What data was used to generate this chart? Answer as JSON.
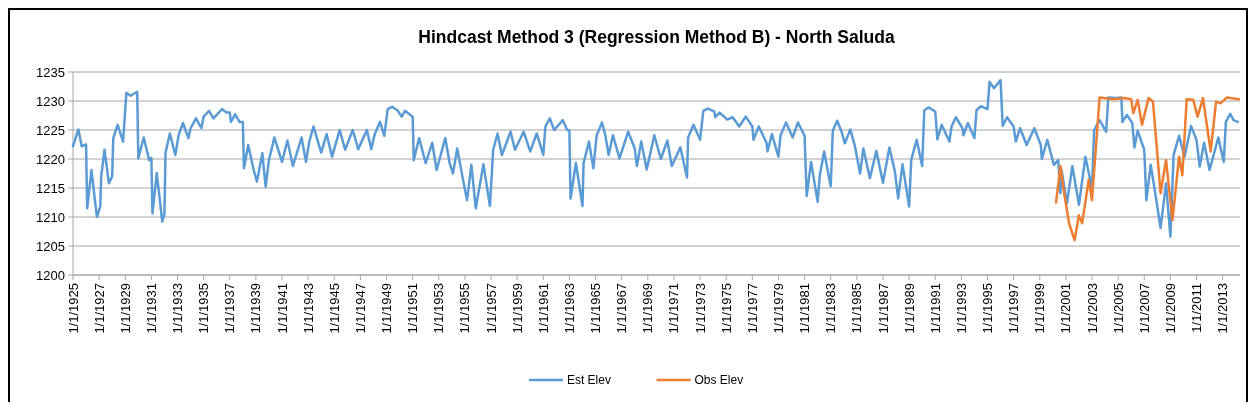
{
  "chart_data": {
    "type": "line",
    "title": "Hindcast Method 3 (Regression Method B) - North Saluda",
    "grid": "y",
    "legend": "bottom",
    "line_style": "solid",
    "xlim": [
      "1925-01-01",
      "2014-05-01"
    ],
    "ylim": [
      1200,
      1235
    ],
    "yticks": [
      1200,
      1205,
      1210,
      1215,
      1220,
      1225,
      1230,
      1235
    ],
    "xticks": [
      {
        "value": "1925-01-01",
        "label": "1/1/1925"
      },
      {
        "value": "1927-01-01",
        "label": "1/1/1927"
      },
      {
        "value": "1929-01-01",
        "label": "1/1/1929"
      },
      {
        "value": "1931-01-01",
        "label": "1/1/1931"
      },
      {
        "value": "1933-01-01",
        "label": "1/1/1933"
      },
      {
        "value": "1935-01-01",
        "label": "1/1/1935"
      },
      {
        "value": "1937-01-01",
        "label": "1/1/1937"
      },
      {
        "value": "1939-01-01",
        "label": "1/1/1939"
      },
      {
        "value": "1941-01-01",
        "label": "1/1/1941"
      },
      {
        "value": "1943-01-01",
        "label": "1/1/1943"
      },
      {
        "value": "1945-01-01",
        "label": "1/1/1945"
      },
      {
        "value": "1947-01-01",
        "label": "1/1/1947"
      },
      {
        "value": "1949-01-01",
        "label": "1/1/1949"
      },
      {
        "value": "1951-01-01",
        "label": "1/1/1951"
      },
      {
        "value": "1953-01-01",
        "label": "1/1/1953"
      },
      {
        "value": "1955-01-01",
        "label": "1/1/1955"
      },
      {
        "value": "1957-01-01",
        "label": "1/1/1957"
      },
      {
        "value": "1959-01-01",
        "label": "1/1/1959"
      },
      {
        "value": "1961-01-01",
        "label": "1/1/1961"
      },
      {
        "value": "1963-01-01",
        "label": "1/1/1963"
      },
      {
        "value": "1965-01-01",
        "label": "1/1/1965"
      },
      {
        "value": "1967-01-01",
        "label": "1/1/1967"
      },
      {
        "value": "1969-01-01",
        "label": "1/1/1969"
      },
      {
        "value": "1971-01-01",
        "label": "1/1/1971"
      },
      {
        "value": "1973-01-01",
        "label": "1/1/1973"
      },
      {
        "value": "1975-01-01",
        "label": "1/1/1975"
      },
      {
        "value": "1977-01-01",
        "label": "1/1/1977"
      },
      {
        "value": "1979-01-01",
        "label": "1/1/1979"
      },
      {
        "value": "1981-01-01",
        "label": "1/1/1981"
      },
      {
        "value": "1983-01-01",
        "label": "1/1/1983"
      },
      {
        "value": "1985-01-01",
        "label": "1/1/1985"
      },
      {
        "value": "1987-01-01",
        "label": "1/1/1987"
      },
      {
        "value": "1989-01-01",
        "label": "1/1/1989"
      },
      {
        "value": "1991-01-01",
        "label": "1/1/1991"
      },
      {
        "value": "1993-01-01",
        "label": "1/1/1993"
      },
      {
        "value": "1995-01-01",
        "label": "1/1/1995"
      },
      {
        "value": "1997-01-01",
        "label": "1/1/1997"
      },
      {
        "value": "1999-01-01",
        "label": "1/1/1999"
      },
      {
        "value": "2001-01-01",
        "label": "1/1/2001"
      },
      {
        "value": "2003-01-01",
        "label": "1/1/2003"
      },
      {
        "value": "2005-01-01",
        "label": "1/1/2005"
      },
      {
        "value": "2007-01-01",
        "label": "1/1/2007"
      },
      {
        "value": "2009-01-01",
        "label": "1/1/2009"
      },
      {
        "value": "2011-01-01",
        "label": "1/1/2011"
      },
      {
        "value": "2013-01-01",
        "label": "1/1/2013"
      }
    ],
    "series": [
      {
        "name": "Est Elev",
        "color": "#5b9bd5",
        "x": [
          "1925-01",
          "1925-06",
          "1925-09",
          "1926-01",
          "1926-02",
          "1926-06",
          "1926-11",
          "1927-02",
          "1927-03",
          "1927-06",
          "1927-10",
          "1928-01",
          "1928-02",
          "1928-06",
          "1928-11",
          "1929-02",
          "1929-06",
          "1929-12",
          "1930-01",
          "1930-06",
          "1930-11",
          "1931-01",
          "1931-02",
          "1931-06",
          "1931-11",
          "1932-01",
          "1932-02",
          "1932-06",
          "1932-11",
          "1933-02",
          "1933-06",
          "1933-11",
          "1934-01",
          "1934-06",
          "1934-11",
          "1935-01",
          "1935-06",
          "1935-10",
          "1936-06",
          "1936-10",
          "1937-01",
          "1937-02",
          "1937-06",
          "1937-10",
          "1938-01",
          "1938-02",
          "1938-06",
          "1938-11",
          "1939-02",
          "1939-07",
          "1939-10",
          "1940-01",
          "1940-06",
          "1941-01",
          "1941-06",
          "1941-11",
          "1942-07",
          "1942-11",
          "1943-02",
          "1943-06",
          "1943-10",
          "1944-01",
          "1944-06",
          "1944-11",
          "1945-06",
          "1945-11",
          "1946-06",
          "1946-11",
          "1947-07",
          "1947-11",
          "1948-02",
          "1948-07",
          "1948-11",
          "1949-02",
          "1949-06",
          "1949-11",
          "1950-03",
          "1950-06",
          "1951-01",
          "1951-02",
          "1951-07",
          "1952-01",
          "1952-07",
          "1952-11",
          "1953-07",
          "1953-11",
          "1954-02",
          "1954-06",
          "1954-11",
          "1955-03",
          "1955-07",
          "1955-11",
          "1956-06",
          "1956-12",
          "1957-03",
          "1957-07",
          "1957-11",
          "1958-07",
          "1958-11",
          "1959-07",
          "1960-01",
          "1960-07",
          "1961-01",
          "1961-03",
          "1961-07",
          "1961-11",
          "1962-07",
          "1962-11",
          "1963-01",
          "1963-02",
          "1963-07",
          "1964-01",
          "1964-02",
          "1964-07",
          "1964-11",
          "1965-02",
          "1965-07",
          "1965-10",
          "1966-01",
          "1966-05",
          "1966-11",
          "1967-07",
          "1968-01",
          "1968-03",
          "1968-07",
          "1968-12",
          "1969-07",
          "1970-01",
          "1970-07",
          "1970-11",
          "1971-07",
          "1972-01",
          "1972-02",
          "1972-07",
          "1973-01",
          "1973-04",
          "1973-08",
          "1974-02",
          "1974-03",
          "1974-07",
          "1975-02",
          "1975-07",
          "1976-01",
          "1976-07",
          "1977-01",
          "1977-02",
          "1977-07",
          "1978-02",
          "1978-03",
          "1978-07",
          "1979-01",
          "1979-03",
          "1979-08",
          "1980-02",
          "1980-07",
          "1981-01",
          "1981-03",
          "1981-07",
          "1982-01",
          "1982-03",
          "1982-07",
          "1983-01",
          "1983-03",
          "1983-07",
          "1983-11",
          "1984-02",
          "1984-07",
          "1984-11",
          "1985-04",
          "1985-07",
          "1986-01",
          "1986-07",
          "1987-01",
          "1987-07",
          "1987-12",
          "1988-03",
          "1988-07",
          "1989-01",
          "1989-03",
          "1989-08",
          "1990-01",
          "1990-03",
          "1990-07",
          "1991-01",
          "1991-03",
          "1991-07",
          "1992-02",
          "1992-04",
          "1992-08",
          "1993-02",
          "1993-03",
          "1993-07",
          "1994-01",
          "1994-03",
          "1994-07",
          "1995-01",
          "1995-03",
          "1995-07",
          "1996-01",
          "1996-03",
          "1996-07",
          "1997-01",
          "1997-03",
          "1997-07",
          "1998-01",
          "1998-08",
          "1999-02",
          "1999-03",
          "1999-08",
          "2000-02",
          "2000-06",
          "2000-08",
          "2000-09",
          "2001-02",
          "2001-07",
          "2002-01",
          "2002-07",
          "2003-01",
          "2003-03",
          "2003-08",
          "2004-02",
          "2004-04",
          "2004-11",
          "2005-04",
          "2005-05",
          "2005-09",
          "2006-02",
          "2006-04",
          "2006-07",
          "2007-01",
          "2007-03",
          "2007-07",
          "2008-01",
          "2008-04",
          "2008-09",
          "2009-01",
          "2009-04",
          "2009-09",
          "2010-02",
          "2010-08",
          "2011-01",
          "2011-04",
          "2011-08",
          "2012-01",
          "2012-09",
          "2013-02",
          "2013-04",
          "2013-08",
          "2013-11",
          "2014-03"
        ],
        "values": [
          1222.2,
          1225.1,
          1222.2,
          1222.5,
          1211.5,
          1218.1,
          1210,
          1211.8,
          1217,
          1221.6,
          1215.8,
          1217,
          1223.6,
          1225.9,
          1223,
          1231.4,
          1230.9,
          1231.6,
          1220.1,
          1223.7,
          1219.8,
          1220.2,
          1210.6,
          1217.6,
          1209.2,
          1210.5,
          1221.1,
          1224.4,
          1220.7,
          1224.1,
          1226.2,
          1223.6,
          1225.3,
          1227,
          1225.3,
          1227.3,
          1228.3,
          1227,
          1228.6,
          1228,
          1228,
          1226.4,
          1227.7,
          1226.4,
          1226.4,
          1218.4,
          1222.4,
          1218.1,
          1216.1,
          1221,
          1215.2,
          1219.8,
          1223.7,
          1219.5,
          1223.2,
          1218.8,
          1223.7,
          1219.5,
          1223,
          1225.6,
          1223,
          1221.1,
          1224.3,
          1220.4,
          1225,
          1221.6,
          1225,
          1221.7,
          1225,
          1221.7,
          1224.2,
          1226.4,
          1224,
          1228.6,
          1229,
          1228.4,
          1227.3,
          1228.3,
          1227.3,
          1219.8,
          1223.6,
          1219.3,
          1222.8,
          1218.1,
          1223.6,
          1219.3,
          1217.5,
          1221.8,
          1216.7,
          1212.9,
          1219,
          1211.5,
          1219.1,
          1211.9,
          1221.6,
          1224.4,
          1220.7,
          1224.7,
          1221.6,
          1224.7,
          1221.3,
          1224.4,
          1220.7,
          1225.6,
          1227,
          1225,
          1226.7,
          1225,
          1224.9,
          1213.2,
          1219.3,
          1211.9,
          1219.3,
          1223,
          1218.4,
          1224.1,
          1226.3,
          1224.1,
          1220.7,
          1224.1,
          1220.1,
          1224.7,
          1221.8,
          1218.8,
          1223,
          1218.2,
          1224.1,
          1220,
          1223.2,
          1218.8,
          1222,
          1216.8,
          1223.7,
          1225.9,
          1223.3,
          1228.3,
          1228.7,
          1228.2,
          1227.2,
          1228,
          1226.8,
          1227.2,
          1225.6,
          1227.3,
          1225.6,
          1223.3,
          1225.6,
          1222.8,
          1221.3,
          1224.3,
          1220.4,
          1224.1,
          1226.3,
          1223.7,
          1226.3,
          1224,
          1213.6,
          1219.5,
          1212.6,
          1217.1,
          1221.3,
          1215.3,
          1224.9,
          1226.6,
          1224.7,
          1222.7,
          1225.1,
          1222.4,
          1217.5,
          1221.8,
          1216.7,
          1221.4,
          1215.9,
          1222,
          1217.8,
          1213.2,
          1219.1,
          1211.8,
          1219.8,
          1223.3,
          1218.8,
          1228.4,
          1228.9,
          1228.2,
          1223.4,
          1225.9,
          1223,
          1225.6,
          1227.2,
          1225.3,
          1224.1,
          1226.2,
          1223.6,
          1228.4,
          1229.1,
          1228.6,
          1233.3,
          1232.2,
          1233.6,
          1225.7,
          1227.2,
          1225.6,
          1223,
          1225.3,
          1222.4,
          1225.3,
          1222.4,
          1220,
          1223.3,
          1219,
          1219.8,
          1214.1,
          1218.1,
          1212.4,
          1218.8,
          1212.1,
          1220.4,
          1214.9,
          1225,
          1226.7,
          1224.7,
          1230.6,
          1230.5,
          1230.6,
          1226.4,
          1227.6,
          1226.2,
          1222,
          1224.9,
          1221.6,
          1212.9,
          1219,
          1211.8,
          1208.1,
          1215.8,
          1206.6,
          1220.7,
          1224,
          1220.4,
          1225.7,
          1223.3,
          1218.7,
          1222.8,
          1218.1,
          1223.7,
          1219.5,
          1226.4,
          1227.8,
          1226.7,
          1226.4
        ]
      },
      {
        "name": "Obs Elev",
        "color": "#ed7d31",
        "x": [
          "2000-04",
          "2000-08",
          "2000-11",
          "2001-04",
          "2001-09",
          "2002-01",
          "2002-04",
          "2002-10",
          "2003-01",
          "2003-08",
          "2004-09",
          "2005-07",
          "2006-01",
          "2006-03",
          "2006-07",
          "2006-11",
          "2007-05",
          "2007-09",
          "2008-04",
          "2008-09",
          "2009-03",
          "2009-09",
          "2009-12",
          "2010-04",
          "2010-10",
          "2011-02",
          "2011-07",
          "2012-02",
          "2012-07",
          "2012-11",
          "2013-05",
          "2014-04"
        ],
        "values": [
          1212.5,
          1218.8,
          1214.6,
          1208.9,
          1206,
          1210.3,
          1208.9,
          1216.4,
          1212.9,
          1230.6,
          1230.3,
          1230.5,
          1230.3,
          1227.9,
          1230.2,
          1225.9,
          1230.5,
          1229.9,
          1214.1,
          1219.8,
          1209.5,
          1220.4,
          1217.2,
          1230.3,
          1230.2,
          1227.3,
          1230.5,
          1221.3,
          1229.9,
          1229.6,
          1230.6,
          1230.3
        ]
      }
    ]
  }
}
